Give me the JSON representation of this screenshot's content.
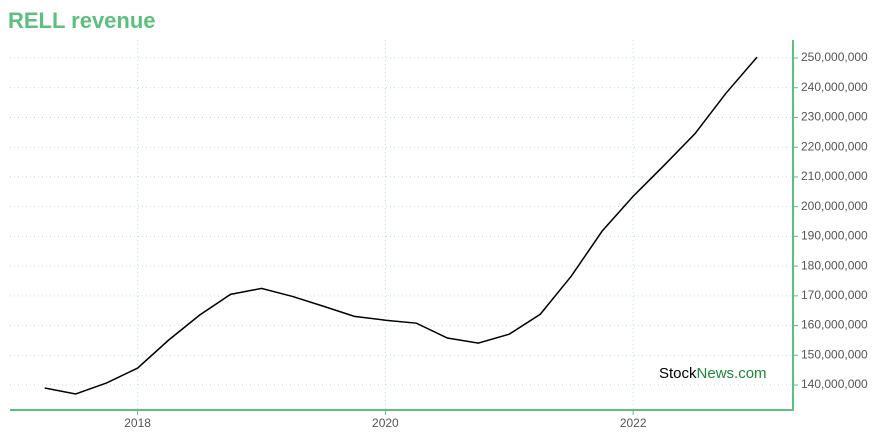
{
  "chart_data": {
    "type": "line",
    "title": "RELL revenue",
    "x": [
      2017.25,
      2017.5,
      2017.75,
      2018,
      2018.25,
      2018.5,
      2018.75,
      2019,
      2019.25,
      2019.5,
      2019.75,
      2020,
      2020.25,
      2020.5,
      2020.75,
      2021,
      2021.25,
      2021.5,
      2021.75,
      2022,
      2022.25,
      2022.5,
      2022.75,
      2023
    ],
    "series": [
      {
        "name": "RELL revenue",
        "color": "#000000",
        "values": [
          139000000,
          137000000,
          140700000,
          145700000,
          155100000,
          163500000,
          170500000,
          172500000,
          169800000,
          166500000,
          163100000,
          161800000,
          160800000,
          155800000,
          154100000,
          157100000,
          163800000,
          176600000,
          191800000,
          203500000,
          213900000,
          224600000,
          238200000,
          250300000
        ]
      }
    ],
    "xlim": [
      2016.97,
      2023.29
    ],
    "xticks": [
      2018,
      2020,
      2022
    ],
    "ylim": [
      131600000,
      256050000
    ],
    "yticks": [
      {
        "value": 140000000,
        "label": "140,000,000"
      },
      {
        "value": 150000000,
        "label": "150,000,000"
      },
      {
        "value": 160000000,
        "label": "160,000,000"
      },
      {
        "value": 170000000,
        "label": "170,000,000"
      },
      {
        "value": 180000000,
        "label": "180,000,000"
      },
      {
        "value": 190000000,
        "label": "190,000,000"
      },
      {
        "value": 200000000,
        "label": "200,000,000"
      },
      {
        "value": 210000000,
        "label": "210,000,000"
      },
      {
        "value": 220000000,
        "label": "220,000,000"
      },
      {
        "value": 230000000,
        "label": "230,000,000"
      },
      {
        "value": 240000000,
        "label": "240,000,000"
      },
      {
        "value": 250000000,
        "label": "250,000,000"
      }
    ],
    "grid": true,
    "axis_color": "#5cbf7f",
    "watermark": {
      "brand": "Stock",
      "suffix": "News.com"
    }
  }
}
